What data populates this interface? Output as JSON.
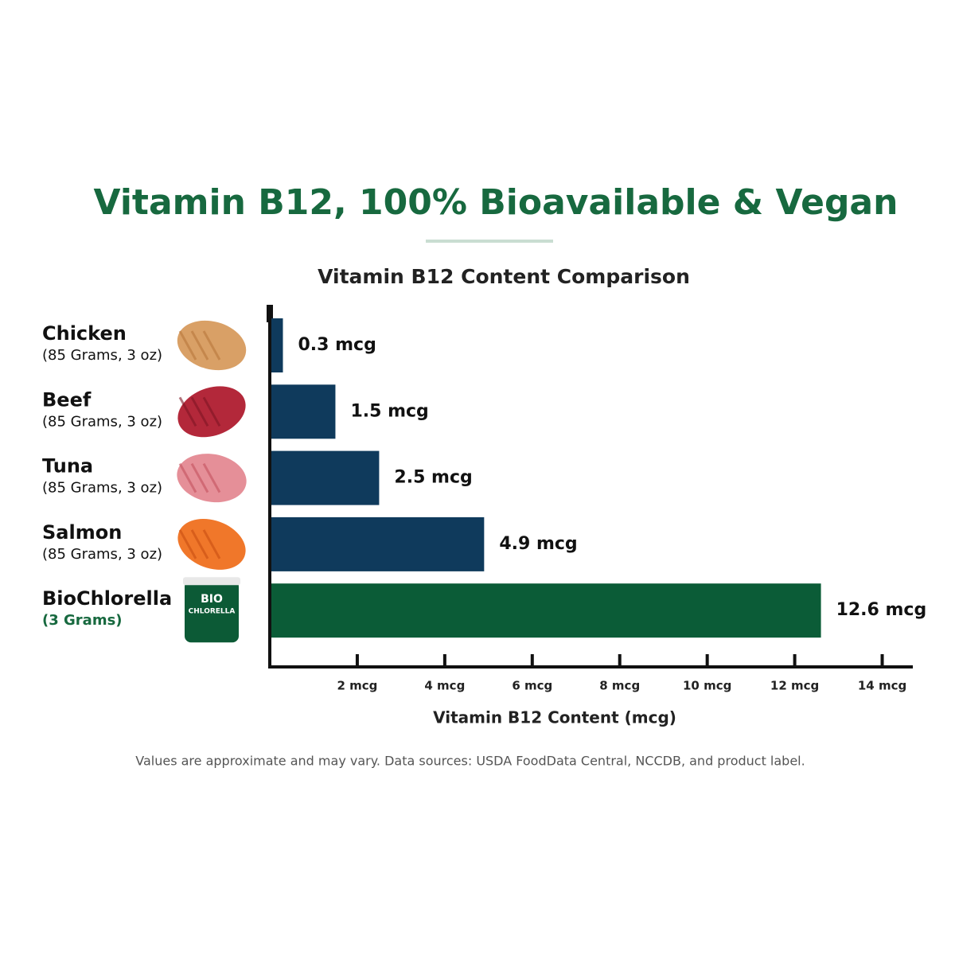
{
  "header": {
    "title": "Vitamin B12, 100% Bioavailable & Vegan"
  },
  "chart_data": {
    "type": "barh",
    "title": "Vitamin B12 Content Comparison",
    "x_label": "Vitamin B12 Content (mcg)",
    "categories": [
      "Chicken",
      "Beef",
      "Tuna",
      "Salmon",
      "BioChlorella"
    ],
    "category_sublabels": [
      "(85 Grams, 3 oz)",
      "(85 Grams, 3 oz)",
      "(85 Grams, 3 oz)",
      "(85 Grams, 3 oz)",
      "(3 Grams)"
    ],
    "values": [
      0.3,
      1.5,
      2.5,
      4.9,
      12.6
    ],
    "value_labels": [
      "0.3 mcg",
      "1.5 mcg",
      "2.5 mcg",
      "4.9 mcg",
      "12.6 mcg"
    ],
    "colors": [
      "#0f3a5c",
      "#0f3a5c",
      "#0f3a5c",
      "#0f3a5c",
      "#0b5c37"
    ],
    "xlim": [
      0,
      14.7
    ],
    "xticks": [
      {
        "value": 2,
        "label": "2 mcg"
      },
      {
        "value": 4,
        "label": "4 mcg"
      },
      {
        "value": 6,
        "label": "6 mcg"
      },
      {
        "value": 8,
        "label": "8 mcg"
      },
      {
        "value": 10,
        "label": "10 mcg"
      },
      {
        "value": 12,
        "label": "12 mcg"
      },
      {
        "value": 14,
        "label": "14 mcg"
      }
    ]
  },
  "product_image": {
    "label_top": "BIO",
    "label_bottom": "CHLORELLA"
  },
  "footnote": "Values are approximate and may vary. Data sources: USDA FoodData Central, NCCDB, and product label."
}
